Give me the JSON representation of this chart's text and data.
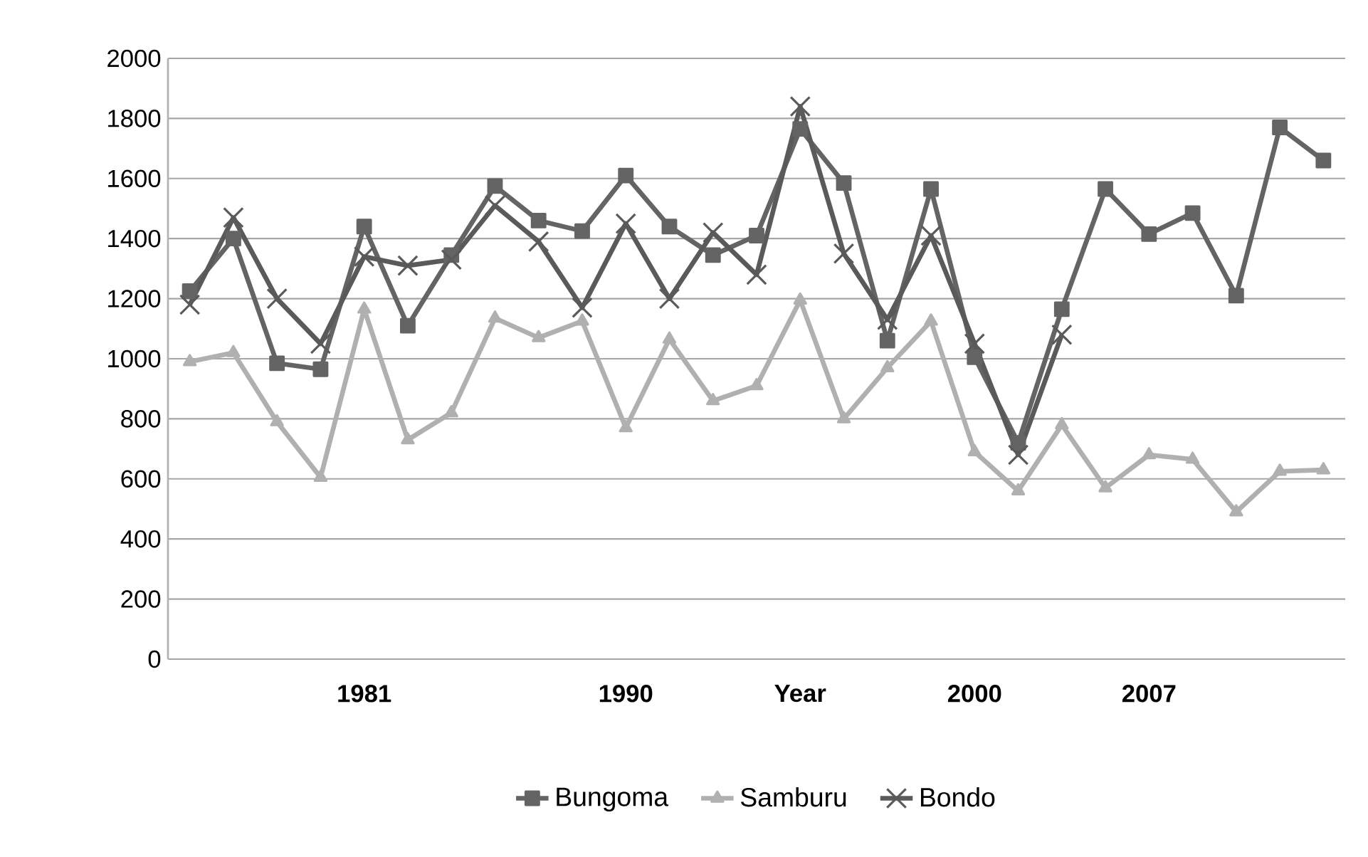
{
  "chart_data": {
    "type": "line",
    "categories": [
      null,
      null,
      null,
      null,
      "1981",
      null,
      null,
      null,
      null,
      null,
      "1990",
      null,
      null,
      null,
      "Year",
      null,
      null,
      null,
      "2000",
      null,
      null,
      null,
      "2007",
      null,
      null,
      null,
      null
    ],
    "series": [
      {
        "name": "Bungoma",
        "color": "#646464",
        "marker": "square",
        "values": [
          1225,
          1400,
          985,
          965,
          1440,
          1110,
          1345,
          1575,
          1460,
          1425,
          1610,
          1440,
          1345,
          1410,
          1765,
          1585,
          1060,
          1565,
          1005,
          720,
          1165,
          1565,
          1415,
          1485,
          1210,
          1770,
          1660
        ]
      },
      {
        "name": "Samburu",
        "color": "#b0b0b0",
        "marker": "triangle",
        "values": [
          990,
          1020,
          790,
          605,
          1165,
          730,
          820,
          1135,
          1070,
          1125,
          770,
          1065,
          860,
          910,
          1195,
          800,
          970,
          1125,
          690,
          560,
          780,
          570,
          680,
          665,
          490,
          625,
          630
        ]
      },
      {
        "name": "Bondo",
        "color": "#5a5a5a",
        "marker": "cross",
        "values": [
          1180,
          1470,
          1200,
          1050,
          1340,
          1310,
          1330,
          1510,
          1390,
          1170,
          1450,
          1200,
          1420,
          1280,
          1840,
          1350,
          1130,
          1410,
          1050,
          680,
          1080,
          null,
          null,
          null,
          null,
          null,
          null
        ]
      }
    ],
    "ylim": [
      0,
      2000
    ],
    "yticks": [
      0,
      200,
      400,
      600,
      800,
      1000,
      1200,
      1400,
      1600,
      1800,
      2000
    ],
    "grid": "y",
    "legend": "bottom",
    "line_style": "solid"
  }
}
